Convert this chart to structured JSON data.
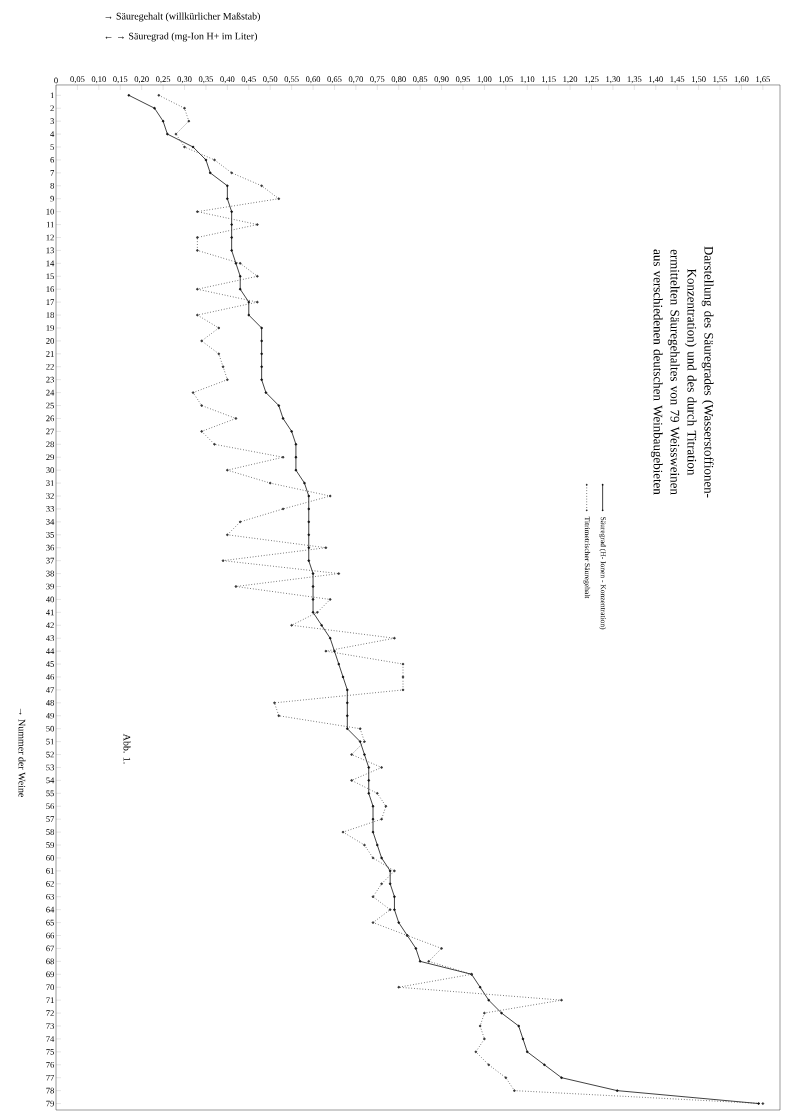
{
  "chart_data": {
    "type": "line",
    "orientation": "horizontal",
    "title": "Darstellung des Säuregrades (Wasserstoffionen-Konzentration) und des durch Titration ermittelten Säuregehaltes von 79 Weissweinen aus verschiedenen deutschen Weinbaugebieten",
    "ylabel": "→ Nummer der Weine",
    "annotations": [
      "→ Säuregehalt (willkürlicher Maßstab)",
      "← → Säuregrad (mg-Ion H+ im Liter)",
      "Abb. 1."
    ],
    "categories": [
      "1",
      "2",
      "3",
      "4",
      "5",
      "6",
      "7",
      "8",
      "9",
      "10",
      "11",
      "12",
      "13",
      "14",
      "15",
      "16",
      "17",
      "18",
      "19",
      "20",
      "21",
      "22",
      "23",
      "24",
      "25",
      "26",
      "27",
      "28",
      "29",
      "30",
      "31",
      "32",
      "33",
      "34",
      "35",
      "36",
      "37",
      "38",
      "39",
      "40",
      "41",
      "42",
      "43",
      "44",
      "45",
      "46",
      "47",
      "48",
      "49",
      "50",
      "51",
      "52",
      "53",
      "54",
      "55",
      "56",
      "57",
      "58",
      "59",
      "60",
      "61",
      "62",
      "63",
      "64",
      "65",
      "66",
      "67",
      "68",
      "69",
      "70",
      "71",
      "72",
      "73",
      "74",
      "75",
      "76",
      "77",
      "78",
      "79"
    ],
    "series": [
      {
        "name": "Säuregrad (H- Ionen - Konzentration)",
        "color": "#111111",
        "line_style": "solid",
        "values": [
          0.17,
          0.23,
          0.25,
          0.26,
          0.32,
          0.35,
          0.36,
          0.4,
          0.4,
          0.41,
          0.41,
          0.41,
          0.41,
          0.42,
          0.43,
          0.43,
          0.45,
          0.45,
          0.48,
          0.48,
          0.48,
          0.48,
          0.48,
          0.49,
          0.52,
          0.53,
          0.55,
          0.56,
          0.56,
          0.56,
          0.58,
          0.59,
          0.59,
          0.59,
          0.59,
          0.59,
          0.59,
          0.6,
          0.6,
          0.6,
          0.6,
          0.62,
          0.64,
          0.65,
          0.66,
          0.67,
          0.68,
          0.68,
          0.68,
          0.68,
          0.71,
          0.72,
          0.73,
          0.73,
          0.73,
          0.74,
          0.74,
          0.74,
          0.75,
          0.76,
          0.78,
          0.78,
          0.79,
          0.79,
          0.8,
          0.82,
          0.84,
          0.85,
          0.97,
          0.99,
          1.01,
          1.04,
          1.08,
          1.09,
          1.1,
          1.14,
          1.18,
          1.31,
          1.64
        ]
      },
      {
        "name": "Titrimetrischer Säuregehalt",
        "color": "#333333",
        "line_style": "dotted",
        "values": [
          0.24,
          0.3,
          0.31,
          0.28,
          0.3,
          0.37,
          0.41,
          0.48,
          0.52,
          0.33,
          0.47,
          0.33,
          0.33,
          0.43,
          0.47,
          0.33,
          0.47,
          0.33,
          0.38,
          0.34,
          0.38,
          0.39,
          0.4,
          0.32,
          0.34,
          0.42,
          0.34,
          0.37,
          0.53,
          0.4,
          0.5,
          0.64,
          0.53,
          0.43,
          0.4,
          0.63,
          0.39,
          0.66,
          0.42,
          0.64,
          0.61,
          0.55,
          0.79,
          0.63,
          0.81,
          0.81,
          0.81,
          0.51,
          0.52,
          0.71,
          0.72,
          0.69,
          0.76,
          0.69,
          0.75,
          0.77,
          0.76,
          0.67,
          0.72,
          0.74,
          0.79,
          0.76,
          0.74,
          0.78,
          0.74,
          0.82,
          0.9,
          0.87,
          0.97,
          0.8,
          1.18,
          1.0,
          0.99,
          1.0,
          0.98,
          1.01,
          1.05,
          1.07,
          1.65
        ]
      }
    ],
    "xlim": [
      0,
      1.69
    ],
    "xticks": [
      0,
      {
        "value": 0.05,
        "label": "0,05"
      },
      {
        "value": 0.1,
        "label": "0,10"
      },
      {
        "value": 0.15,
        "label": "0,15"
      },
      {
        "value": 0.2,
        "label": "0,20"
      },
      {
        "value": 0.25,
        "label": "0,25"
      },
      {
        "value": 0.3,
        "label": "0,30"
      },
      {
        "value": 0.35,
        "label": "0,35"
      },
      {
        "value": 0.4,
        "label": "0,40"
      },
      {
        "value": 0.45,
        "label": "0,45"
      },
      {
        "value": 0.5,
        "label": "0,50"
      },
      {
        "value": 0.55,
        "label": "0,55"
      },
      {
        "value": 0.6,
        "label": "0,60"
      },
      {
        "value": 0.65,
        "label": "0,65"
      },
      {
        "value": 0.7,
        "label": "0,70"
      },
      {
        "value": 0.75,
        "label": "0,75"
      },
      {
        "value": 0.8,
        "label": "0,80"
      },
      {
        "value": 0.85,
        "label": "0,85"
      },
      {
        "value": 0.9,
        "label": "0,90"
      },
      {
        "value": 0.95,
        "label": "0,95"
      },
      {
        "value": 1.0,
        "label": "1,00"
      },
      {
        "value": 1.05,
        "label": "1,05"
      },
      {
        "value": 1.1,
        "label": "1,10"
      },
      {
        "value": 1.15,
        "label": "1,15"
      },
      {
        "value": 1.2,
        "label": "1,20"
      },
      {
        "value": 1.25,
        "label": "1,25"
      },
      {
        "value": 1.3,
        "label": "1,30"
      },
      {
        "value": 1.35,
        "label": "1,35"
      },
      {
        "value": 1.4,
        "label": "1,40"
      },
      {
        "value": 1.45,
        "label": "1,45"
      },
      {
        "value": 1.5,
        "label": "1,50"
      },
      {
        "value": 1.55,
        "label": "1,55"
      },
      {
        "value": 1.6,
        "label": "1,60"
      },
      {
        "value": 1.65,
        "label": "1,65"
      }
    ],
    "marker": "circle",
    "legend": "right"
  }
}
